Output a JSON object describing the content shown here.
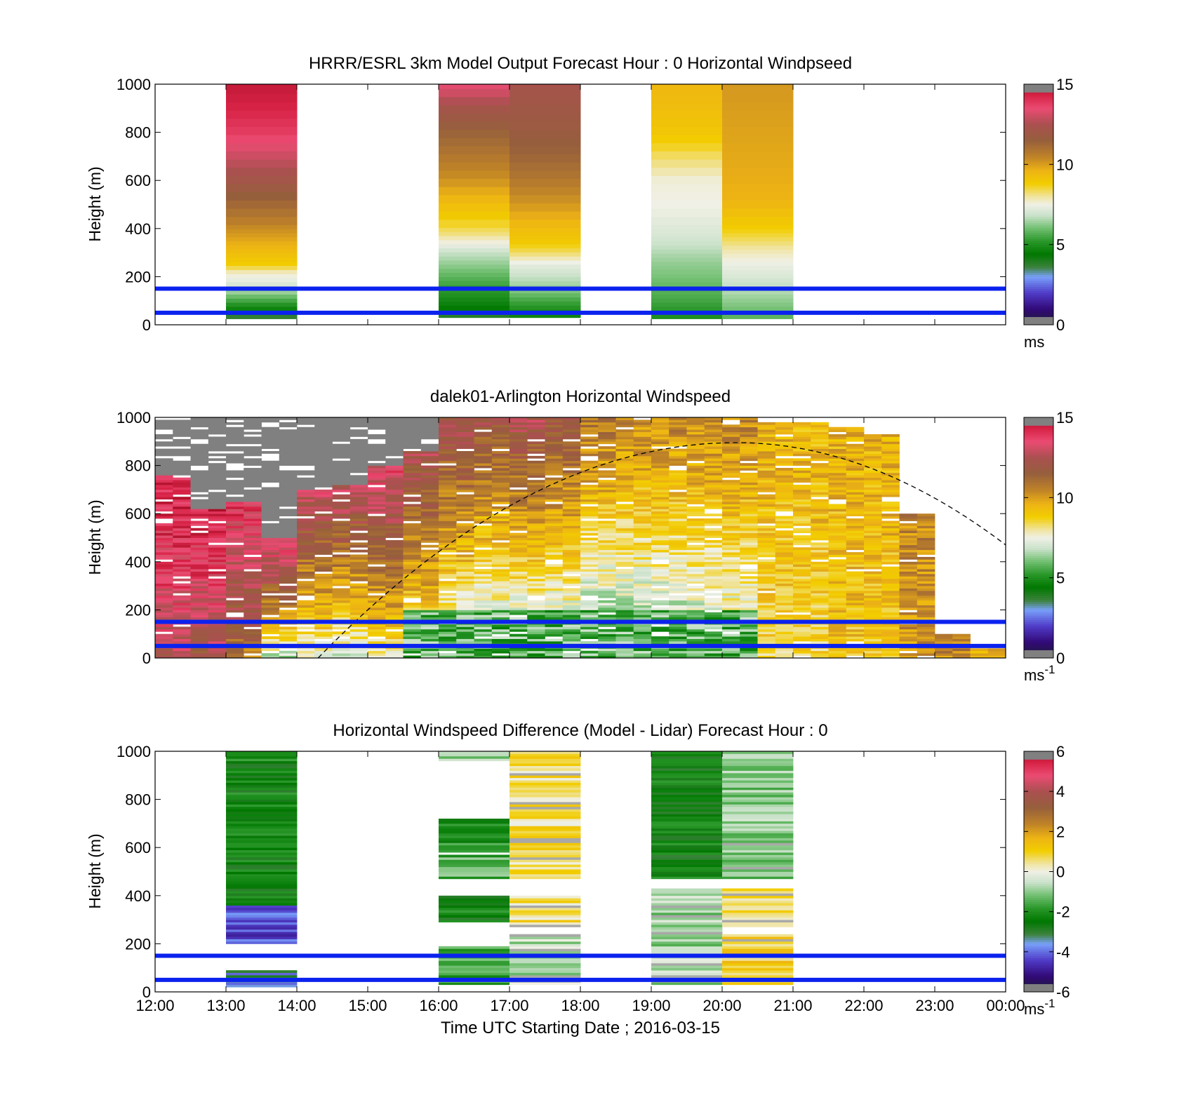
{
  "figure": {
    "xlabel": "Time UTC  Starting Date ; 2016-03-15",
    "x_ticks": [
      "12:00",
      "13:00",
      "14:00",
      "15:00",
      "16:00",
      "17:00",
      "18:00",
      "19:00",
      "20:00",
      "21:00",
      "22:00",
      "23:00",
      "00:00"
    ]
  },
  "chart_data": [
    {
      "type": "heatmap",
      "title": "HRRR/ESRL 3km Model Output   Forecast Hour : 0 Horizontal Windpseed",
      "xlabel": "",
      "ylabel": "Height (m)",
      "ylim": [
        0,
        1000
      ],
      "y_ticks": [
        "0",
        "200",
        "400",
        "600",
        "800",
        "1000"
      ],
      "colorbar": {
        "min": 0,
        "max": 15,
        "ticks": [
          "0",
          "5",
          "10",
          "15"
        ],
        "unit": "ms",
        "unit_sup": ""
      },
      "reference_lines_m": [
        50,
        150
      ],
      "columns": [
        {
          "start_hour": 13,
          "end_hour": 14,
          "bottom_m": 25,
          "levels": [
            [
              0,
              2.8
            ],
            [
              60,
              4.5
            ],
            [
              100,
              5.5
            ],
            [
              140,
              6.5
            ],
            [
              175,
              7.2
            ],
            [
              215,
              7.7
            ],
            [
              250,
              8.8
            ],
            [
              300,
              9.3
            ],
            [
              350,
              9.8
            ],
            [
              400,
              10.3
            ],
            [
              450,
              10.8
            ],
            [
              500,
              11.2
            ],
            [
              560,
              11.7
            ],
            [
              620,
              12.3
            ],
            [
              700,
              13.0
            ],
            [
              800,
              13.8
            ],
            [
              900,
              14.3
            ],
            [
              1000,
              14.6
            ]
          ]
        },
        {
          "start_hour": 16,
          "end_hour": 17,
          "bottom_m": 30,
          "levels": [
            [
              0,
              2.8
            ],
            [
              50,
              4.2
            ],
            [
              100,
              4.8
            ],
            [
              150,
              5.3
            ],
            [
              200,
              5.8
            ],
            [
              250,
              6.3
            ],
            [
              300,
              6.8
            ],
            [
              340,
              7.5
            ],
            [
              380,
              8.2
            ],
            [
              440,
              8.8
            ],
            [
              500,
              9.3
            ],
            [
              560,
              9.8
            ],
            [
              600,
              10.2
            ],
            [
              700,
              10.8
            ],
            [
              800,
              11.4
            ],
            [
              900,
              12.2
            ],
            [
              1000,
              13.5
            ]
          ]
        },
        {
          "start_hour": 17,
          "end_hour": 18,
          "bottom_m": 30,
          "levels": [
            [
              0,
              4.3
            ],
            [
              50,
              4.8
            ],
            [
              100,
              5.5
            ],
            [
              150,
              6.3
            ],
            [
              200,
              6.8
            ],
            [
              250,
              7.3
            ],
            [
              300,
              8.3
            ],
            [
              350,
              9.0
            ],
            [
              400,
              9.3
            ],
            [
              450,
              9.7
            ],
            [
              500,
              10.1
            ],
            [
              560,
              10.5
            ],
            [
              620,
              10.9
            ],
            [
              700,
              11.3
            ],
            [
              800,
              11.7
            ],
            [
              900,
              12.0
            ],
            [
              1000,
              12.3
            ]
          ]
        },
        {
          "start_hour": 19,
          "end_hour": 20,
          "bottom_m": 25,
          "levels": [
            [
              0,
              4.8
            ],
            [
              60,
              5.2
            ],
            [
              100,
              5.5
            ],
            [
              150,
              5.8
            ],
            [
              200,
              6.1
            ],
            [
              250,
              6.3
            ],
            [
              300,
              6.6
            ],
            [
              340,
              6.9
            ],
            [
              380,
              7.1
            ],
            [
              440,
              7.3
            ],
            [
              500,
              7.5
            ],
            [
              600,
              7.6
            ],
            [
              650,
              8.0
            ],
            [
              700,
              8.3
            ],
            [
              750,
              8.7
            ],
            [
              800,
              9.0
            ],
            [
              900,
              9.3
            ],
            [
              1000,
              9.5
            ]
          ]
        },
        {
          "start_hour": 20,
          "end_hour": 21,
          "bottom_m": 25,
          "levels": [
            [
              0,
              5.6
            ],
            [
              60,
              6.0
            ],
            [
              100,
              6.3
            ],
            [
              150,
              6.7
            ],
            [
              200,
              7.1
            ],
            [
              250,
              7.4
            ],
            [
              300,
              7.8
            ],
            [
              350,
              8.3
            ],
            [
              400,
              8.8
            ],
            [
              460,
              9.2
            ],
            [
              520,
              9.6
            ],
            [
              600,
              9.7
            ],
            [
              700,
              9.8
            ],
            [
              800,
              9.9
            ],
            [
              900,
              10.0
            ],
            [
              1000,
              10.1
            ]
          ]
        }
      ]
    },
    {
      "type": "heatmap",
      "title": "dalek01-Arlington  Horizontal Windspeed",
      "xlabel": "",
      "ylabel": "Height (m)",
      "ylim": [
        0,
        1000
      ],
      "y_ticks": [
        "0",
        "200",
        "400",
        "600",
        "800",
        "1000"
      ],
      "colorbar": {
        "min": 0,
        "max": 15,
        "ticks": [
          "0",
          "5",
          "10",
          "15"
        ],
        "unit": "ms",
        "unit_sup": "-1"
      },
      "reference_lines_m": [
        50,
        150
      ],
      "overlay_curve": {
        "style": "dashed",
        "start_hour": 14.3,
        "peak_hour": 20.2,
        "peak_m": 895,
        "end_hour": 24,
        "end_m": 470
      },
      "profiles": [
        {
          "hour": 12.0,
          "top_m": 760,
          "missing_above_m": 780,
          "low": 12.5,
          "high": 14.5
        },
        {
          "hour": 12.5,
          "top_m": 620,
          "missing_above_m": 800,
          "low": 12.0,
          "high": 14.5
        },
        {
          "hour": 13.0,
          "top_m": 650,
          "missing_above_m": 800,
          "low": 10.5,
          "high": 14.0
        },
        {
          "hour": 13.5,
          "top_m": 500,
          "missing_above_m": 800,
          "low": 6.5,
          "high": 14.0
        },
        {
          "hour": 14.0,
          "top_m": 700,
          "missing_above_m": 800,
          "low": 7.0,
          "high": 13.0
        },
        {
          "hour": 14.5,
          "top_m": 720,
          "missing_above_m": 820,
          "low": 6.5,
          "high": 13.0
        },
        {
          "hour": 15.0,
          "top_m": 800,
          "missing_above_m": 870,
          "low": 7.5,
          "high": 13.5
        },
        {
          "hour": 15.5,
          "top_m": 860,
          "missing_above_m": 930,
          "low": 7.0,
          "high": 12.5
        },
        {
          "hour": 16.0,
          "top_m": 1000,
          "missing_above_m": 1000,
          "low": 5.5,
          "high": 12.5
        },
        {
          "hour": 16.5,
          "top_m": 1000,
          "missing_above_m": 1000,
          "low": 5.0,
          "high": 12.0
        },
        {
          "hour": 17.0,
          "top_m": 1000,
          "missing_above_m": 1000,
          "low": 5.0,
          "high": 12.5
        },
        {
          "hour": 17.5,
          "top_m": 1000,
          "missing_above_m": 1000,
          "low": 5.0,
          "high": 12.0
        },
        {
          "hour": 18.0,
          "top_m": 1000,
          "missing_above_m": 1000,
          "low": 4.5,
          "high": 11.0
        },
        {
          "hour": 18.5,
          "top_m": 1000,
          "missing_above_m": 1000,
          "low": 5.0,
          "high": 10.5
        },
        {
          "hour": 19.0,
          "top_m": 1000,
          "missing_above_m": 1000,
          "low": 5.0,
          "high": 10.5
        },
        {
          "hour": 19.5,
          "top_m": 1000,
          "missing_above_m": 1000,
          "low": 5.5,
          "high": 10.5
        },
        {
          "hour": 20.0,
          "top_m": 1000,
          "missing_above_m": 1000,
          "low": 6.0,
          "high": 10.5
        },
        {
          "hour": 20.5,
          "top_m": 980,
          "missing_above_m": 980,
          "low": 8.5,
          "high": 9.5
        },
        {
          "hour": 21.0,
          "top_m": 980,
          "missing_above_m": 980,
          "low": 8.5,
          "high": 9.5
        },
        {
          "hour": 21.5,
          "top_m": 960,
          "missing_above_m": 960,
          "low": 9.0,
          "high": 9.5
        },
        {
          "hour": 22.0,
          "top_m": 930,
          "missing_above_m": 930,
          "low": 9.0,
          "high": 9.5
        },
        {
          "hour": 22.5,
          "top_m": 600,
          "missing_above_m": 600,
          "low": 10.0,
          "high": 10.5
        },
        {
          "hour": 23.0,
          "top_m": 100,
          "missing_above_m": 100,
          "low": 10.5,
          "high": 10.5
        },
        {
          "hour": 23.5,
          "top_m": 40,
          "missing_above_m": 40,
          "low": 9.5,
          "high": 9.5
        }
      ]
    },
    {
      "type": "heatmap",
      "title": "Horizontal Windspeed Difference (Model - Lidar) Forecast Hour : 0",
      "xlabel": "Time UTC  Starting Date ; 2016-03-15",
      "ylabel": "Height (m)",
      "ylim": [
        0,
        1000
      ],
      "y_ticks": [
        "0",
        "200",
        "400",
        "600",
        "800",
        "1000"
      ],
      "colorbar": {
        "min": -6,
        "max": 6,
        "ticks": [
          "-6",
          "-4",
          "-2",
          "0",
          "2",
          "4",
          "6"
        ],
        "unit": "ms",
        "unit_sup": "-1"
      },
      "reference_lines_m": [
        50,
        150
      ],
      "segments": [
        {
          "start_hour": 13,
          "end_hour": 14,
          "bottom_m": 200,
          "top_m": 360,
          "value": -4.3
        },
        {
          "start_hour": 13,
          "end_hour": 14,
          "bottom_m": 360,
          "top_m": 1000,
          "value": -2.3
        },
        {
          "start_hour": 13,
          "end_hour": 14,
          "bottom_m": 20,
          "top_m": 90,
          "value": -3.5
        },
        {
          "start_hour": 16,
          "end_hour": 17,
          "bottom_m": 960,
          "top_m": 1000,
          "value": -0.8
        },
        {
          "start_hour": 16,
          "end_hour": 17,
          "bottom_m": 580,
          "top_m": 720,
          "value": -2.0
        },
        {
          "start_hour": 16,
          "end_hour": 17,
          "bottom_m": 470,
          "top_m": 570,
          "value": -1.5
        },
        {
          "start_hour": 16,
          "end_hour": 17,
          "bottom_m": 290,
          "top_m": 400,
          "value": -2.3
        },
        {
          "start_hour": 16,
          "end_hour": 17,
          "bottom_m": 30,
          "top_m": 190,
          "value": -1.6
        },
        {
          "start_hour": 17,
          "end_hour": 18,
          "bottom_m": 470,
          "top_m": 1000,
          "value": 0.6
        },
        {
          "start_hour": 17,
          "end_hour": 18,
          "bottom_m": 270,
          "top_m": 400,
          "value": 0.6
        },
        {
          "start_hour": 17,
          "end_hour": 18,
          "bottom_m": 30,
          "top_m": 240,
          "value": -0.6
        },
        {
          "start_hour": 19,
          "end_hour": 20,
          "bottom_m": 470,
          "top_m": 1000,
          "value": -2.4
        },
        {
          "start_hour": 19,
          "end_hour": 20,
          "bottom_m": 30,
          "top_m": 430,
          "value": -0.8
        },
        {
          "start_hour": 20,
          "end_hour": 21,
          "bottom_m": 470,
          "top_m": 1000,
          "value": -1.0
        },
        {
          "start_hour": 20,
          "end_hour": 21,
          "bottom_m": 270,
          "top_m": 430,
          "value": 0.6
        },
        {
          "start_hour": 20,
          "end_hour": 21,
          "bottom_m": 30,
          "top_m": 240,
          "value": 1.0
        }
      ]
    }
  ]
}
